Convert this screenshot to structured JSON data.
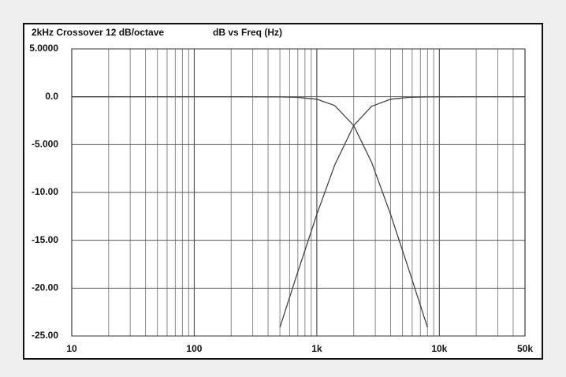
{
  "chart_data": {
    "type": "line",
    "title": "2kHz Crossover 12 dB/octave",
    "subtitle": "dB  vs Freq (Hz)",
    "x": [
      10,
      20,
      50,
      100,
      200,
      500,
      700,
      1000,
      1400,
      2000,
      2800,
      4000,
      5600,
      8000,
      10000,
      20000,
      50000
    ],
    "series": [
      {
        "color": "#444444",
        "values": [
          0,
          0,
          0,
          0,
          0,
          -0.017,
          -0.065,
          -0.26,
          -0.92,
          -3.01,
          -6.85,
          -12.3,
          -17.96,
          -24.1,
          null,
          null,
          null
        ]
      },
      {
        "color": "#444444",
        "values": [
          null,
          null,
          null,
          null,
          null,
          -24.1,
          -18.3,
          -12.3,
          -7.13,
          -3.01,
          -1.0,
          -0.26,
          -0.07,
          -0.017,
          -0.007,
          0,
          0
        ]
      }
    ],
    "xscale": "log",
    "xlim": [
      10,
      50000
    ],
    "xticks": [
      10,
      100,
      {
        "value": 1000,
        "label": "1k"
      },
      {
        "value": 10000,
        "label": "10k"
      },
      {
        "value": 50000,
        "label": "50k"
      }
    ],
    "xminorticks": [
      20,
      30,
      40,
      50,
      60,
      70,
      80,
      90,
      200,
      300,
      400,
      500,
      600,
      700,
      800,
      900,
      2000,
      3000,
      4000,
      5000,
      6000,
      7000,
      8000,
      9000,
      20000,
      30000,
      40000
    ],
    "ylim": [
      -25,
      5
    ],
    "yticks": [
      {
        "value": 5,
        "label": "5.0000"
      },
      {
        "value": 0,
        "label": "0.0"
      },
      {
        "value": -5,
        "label": "-5.000"
      },
      {
        "value": -10,
        "label": "-10.00"
      },
      {
        "value": -15,
        "label": "-15.00"
      },
      {
        "value": -20,
        "label": "-20.00"
      },
      {
        "value": -25,
        "label": "-25.00"
      }
    ],
    "grid": true
  }
}
